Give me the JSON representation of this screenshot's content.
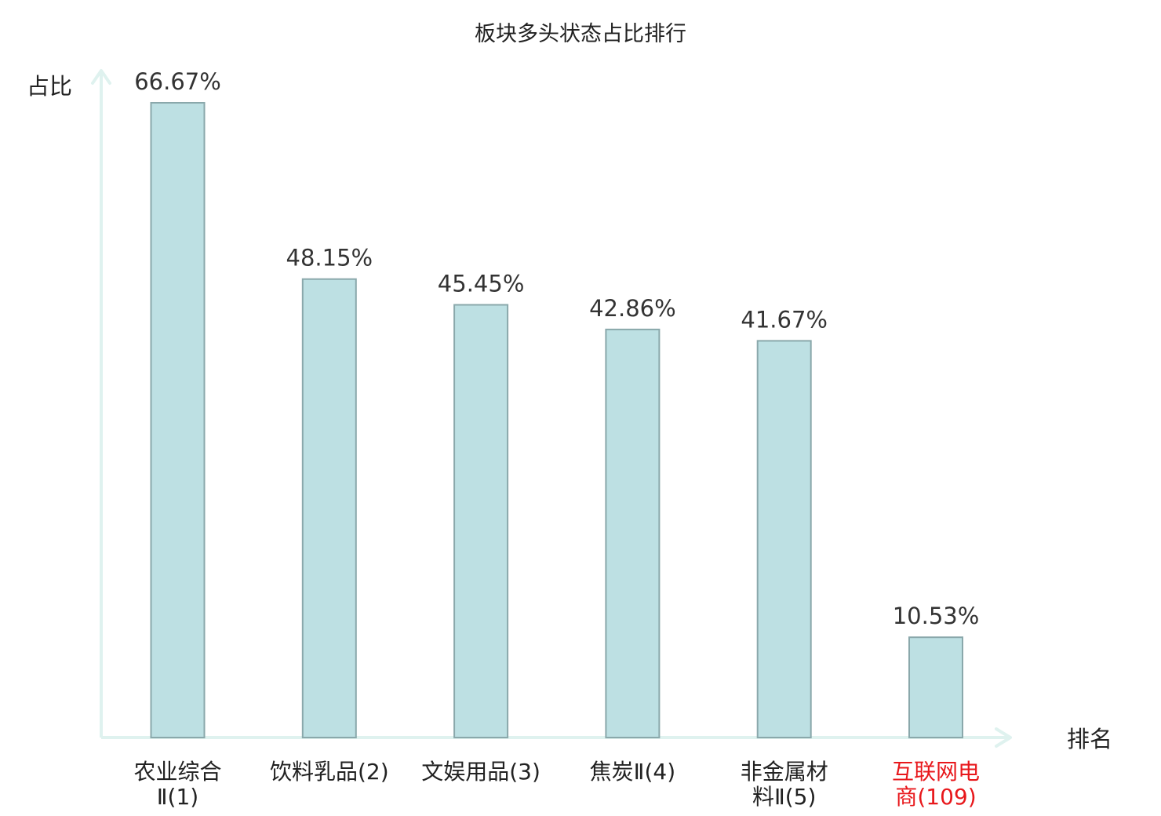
{
  "chart_data": {
    "type": "bar",
    "title": "板块多头状态占比排行",
    "ylabel": "占比",
    "xlabel": "排名",
    "ylim": [
      0,
      80
    ],
    "grid": false,
    "categories": [
      {
        "lines": [
          {
            "text": "农业综合",
            "part": "name"
          },
          {
            "text": "Ⅱ(1)",
            "part": "rank"
          }
        ],
        "highlight": false
      },
      {
        "lines": [
          {
            "text": "饮料乳品(2)",
            "part": "name"
          }
        ],
        "highlight": false
      },
      {
        "lines": [
          {
            "text": "文娱用品(3)",
            "part": "name"
          }
        ],
        "highlight": false
      },
      {
        "lines": [
          {
            "text": "焦炭Ⅱ(4)",
            "part": "name"
          }
        ],
        "highlight": false
      },
      {
        "lines": [
          {
            "text": "非金属材",
            "part": "name"
          },
          {
            "text": "料Ⅱ(5)",
            "part": "name"
          }
        ],
        "highlight": false
      },
      {
        "lines": [
          {
            "text": "互联网电",
            "part": "name"
          },
          {
            "text": "商(109)",
            "part": "name"
          }
        ],
        "highlight": true
      }
    ],
    "values": [
      66.67,
      48.15,
      45.45,
      42.86,
      41.67,
      10.53
    ],
    "value_labels": [
      "66.67%",
      "48.15%",
      "45.45%",
      "42.86%",
      "41.67%",
      "10.53%"
    ],
    "colors": {
      "bar_fill": "#bde0e3",
      "bar_stroke": "#8aa8ab",
      "axis": "#dff2ef",
      "label": "#222222",
      "highlight_label": "#e8181c"
    }
  }
}
